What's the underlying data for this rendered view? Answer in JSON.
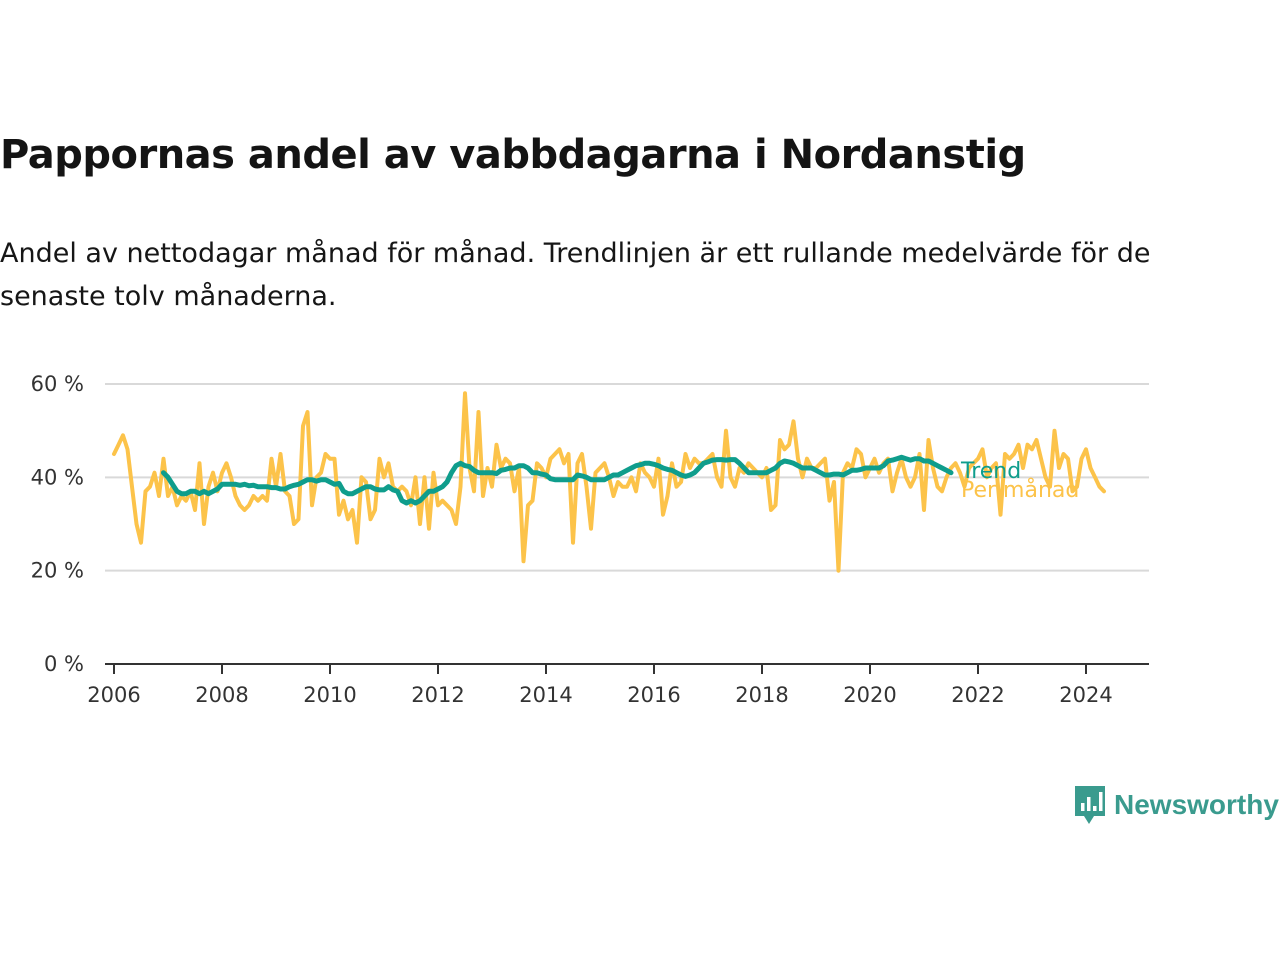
{
  "header": {
    "title": "Pappornas andel av vabbdagarna i Nordanstig",
    "subtitle": "Andel av nettodagar månad för månad. Trendlinjen är ett rullande medelvärde för de senaste tolv månaderna."
  },
  "brand": {
    "name": "Newsworthy",
    "icon": "newsworthy-logo-icon",
    "color": "#3a9b8e"
  },
  "colors": {
    "monthly": "#fcc34a",
    "trend": "#0f9d8c",
    "grid": "#d9d9d9",
    "axis": "#333333"
  },
  "chart_data": {
    "type": "line",
    "title": "Pappornas andel av vabbdagarna i Nordanstig",
    "xlabel": "",
    "ylabel": "",
    "x_start": "2006-01",
    "x_interval": "month",
    "xlim": [
      "2005-11",
      "2025-03"
    ],
    "x_ticks": [
      "2006",
      "2008",
      "2010",
      "2012",
      "2014",
      "2016",
      "2018",
      "2020",
      "2022",
      "2024"
    ],
    "ylim": [
      0,
      60
    ],
    "y_ticks": [
      0,
      20,
      40,
      60
    ],
    "y_tick_labels": [
      "0 %",
      "20 %",
      "40 %",
      "60 %"
    ],
    "grid": "horizontal",
    "legend": "inline labels at line ends",
    "series": [
      {
        "name": "Per månad",
        "values": [
          45,
          47,
          49,
          46,
          38,
          30,
          26,
          37,
          38,
          41,
          36,
          44,
          36,
          38,
          34,
          36,
          35,
          37,
          33,
          43,
          30,
          38,
          41,
          37,
          41,
          43,
          40,
          36,
          34,
          33,
          34,
          36,
          35,
          36,
          35,
          44,
          38,
          45,
          37,
          36,
          30,
          31,
          51,
          54,
          34,
          40,
          41,
          45,
          44,
          44,
          32,
          35,
          31,
          33,
          26,
          40,
          39,
          31,
          33,
          44,
          40,
          43,
          38,
          37,
          38,
          37,
          34,
          40,
          30,
          40,
          29,
          41,
          34,
          35,
          34,
          33,
          30,
          38,
          58,
          42,
          37,
          54,
          36,
          42,
          38,
          47,
          42,
          44,
          43,
          37,
          42,
          22,
          34,
          35,
          43,
          42,
          40,
          44,
          45,
          46,
          43,
          45,
          26,
          43,
          45,
          38,
          29,
          41,
          42,
          43,
          40,
          36,
          39,
          38,
          38,
          40,
          37,
          43,
          41,
          40,
          38,
          44,
          32,
          36,
          43,
          38,
          39,
          45,
          42,
          44,
          43,
          43,
          44,
          45,
          40,
          38,
          50,
          40,
          38,
          42,
          41,
          43,
          42,
          41,
          40,
          42,
          33,
          34,
          48,
          46,
          47,
          52,
          44,
          40,
          44,
          42,
          42,
          43,
          44,
          35,
          39,
          20,
          41,
          43,
          42,
          46,
          45,
          40,
          42,
          44,
          41,
          43,
          44,
          37,
          41,
          44,
          40,
          38,
          40,
          45,
          33,
          48,
          42,
          38,
          37,
          40,
          42,
          43,
          41,
          38,
          42,
          43,
          44,
          46,
          40,
          42,
          43,
          32,
          45,
          44,
          45,
          47,
          42,
          47,
          46,
          48,
          44,
          40,
          38,
          50,
          42,
          45,
          44,
          37,
          38,
          44,
          46,
          42,
          40,
          38,
          37
        ]
      },
      {
        "name": "Trend",
        "start": "2006-12",
        "values": [
          41,
          40,
          38.5,
          37,
          36.5,
          36.5,
          37,
          37,
          36.5,
          37,
          36.5,
          37,
          37.5,
          38.5,
          38.5,
          38.5,
          38.5,
          38.3,
          38.5,
          38.2,
          38.3,
          38,
          38,
          38,
          37.8,
          37.8,
          37.5,
          37.5,
          38,
          38.3,
          38.5,
          39,
          39.5,
          39.5,
          39.2,
          39.5,
          39.5,
          39,
          38.5,
          38.7,
          37,
          36.5,
          36.5,
          37,
          37.5,
          38,
          38,
          37.5,
          37.3,
          37.3,
          38,
          37.3,
          37,
          35,
          34.5,
          35,
          34.5,
          35,
          36,
          37,
          37,
          37.5,
          38,
          39,
          41,
          42.5,
          43,
          42.5,
          42.3,
          41.5,
          41,
          41,
          41,
          41,
          40.8,
          41.5,
          41.7,
          42,
          42,
          42.5,
          42.5,
          42,
          41,
          41,
          40.7,
          40.5,
          39.7,
          39.5,
          39.5,
          39.5,
          39.5,
          39.5,
          40.5,
          40.3,
          40,
          39.5,
          39.5,
          39.5,
          39.5,
          40,
          40.5,
          40.5,
          41,
          41.5,
          42,
          42.5,
          42.7,
          43,
          43,
          42.8,
          42.5,
          42,
          41.7,
          41.5,
          41,
          40.5,
          40.2,
          40.5,
          41,
          42,
          43,
          43.3,
          43.7,
          43.8,
          43.8,
          43.7,
          43.8,
          43.8,
          43,
          42,
          41,
          41,
          41,
          41,
          41,
          41.5,
          42,
          43,
          43.5,
          43.3,
          43,
          42.5,
          42,
          42,
          42,
          41.5,
          41,
          40.5,
          40.5,
          40.7,
          40.7,
          40.5,
          41,
          41.5,
          41.5,
          41.7,
          42,
          42,
          42,
          42,
          42.5,
          43.5,
          43.7,
          44,
          44.3,
          44,
          43.7,
          44,
          44,
          43.5,
          43.5,
          43,
          42.5,
          42,
          41.5,
          41
        ]
      }
    ]
  }
}
